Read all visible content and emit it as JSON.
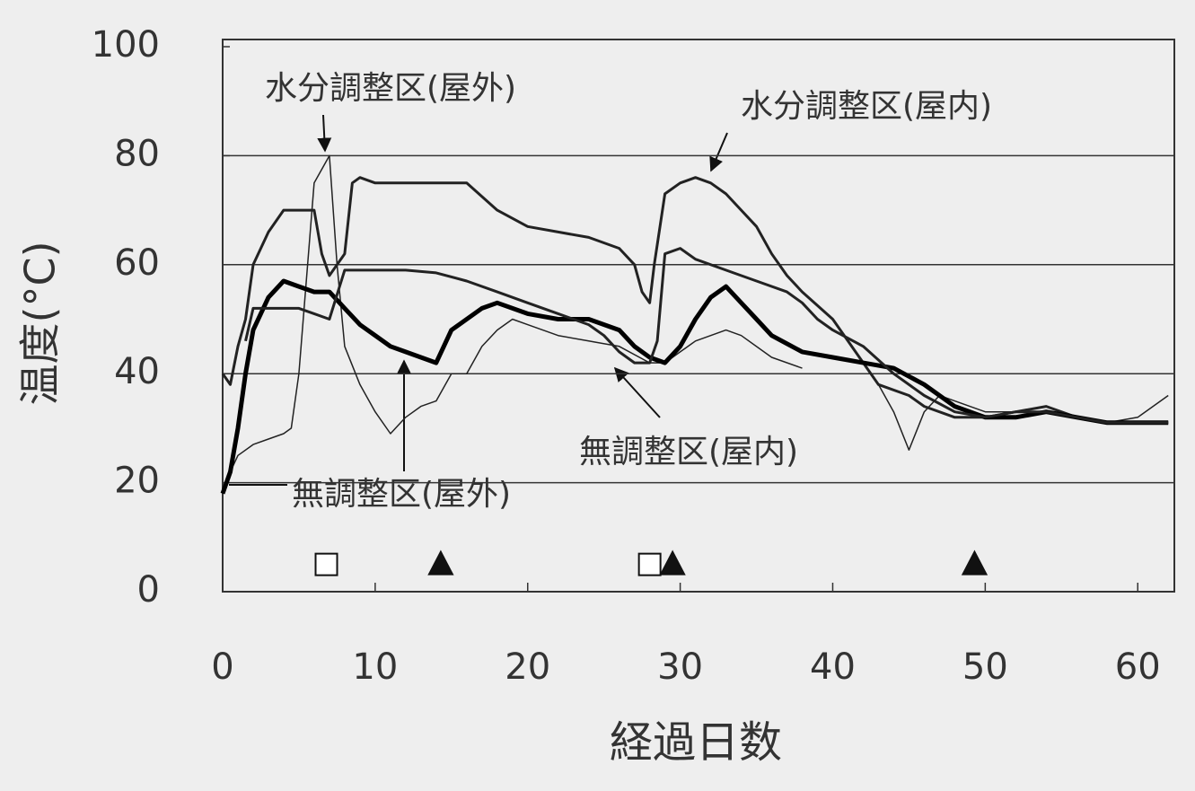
{
  "chart_data": {
    "type": "line",
    "xlabel": "経過日数",
    "ylabel": "温度(°C)",
    "xlim": [
      0,
      62.4
    ],
    "xticks": [
      0,
      10,
      20,
      30,
      40,
      50,
      60
    ],
    "ylim": [
      0,
      100
    ],
    "yticks": [
      0,
      20,
      40,
      60,
      80,
      100
    ],
    "grid": true,
    "series": [
      {
        "name": "水分調整区(屋外)",
        "color": "#222222",
        "width": 1.5,
        "x": [
          0.5,
          1,
          2,
          3,
          4,
          4.5,
          5,
          6,
          7,
          7.5,
          8,
          9,
          10,
          11,
          12,
          13,
          14,
          15,
          16,
          17,
          18,
          19,
          20,
          22,
          24,
          26,
          28,
          29,
          30,
          31,
          32,
          33,
          34,
          36,
          38,
          40,
          43,
          44,
          45,
          46,
          47,
          48,
          50,
          52,
          54,
          56,
          58,
          60,
          62
        ],
        "values": [
          22,
          25,
          27,
          28,
          29,
          30,
          40,
          75,
          80,
          60,
          45,
          38,
          33,
          29,
          32,
          34,
          35,
          40,
          40,
          45,
          48,
          50,
          49,
          47,
          46,
          45,
          42,
          42,
          44,
          46,
          47,
          48,
          47,
          43,
          41,
          null,
          38,
          33,
          26,
          33,
          36,
          35,
          33,
          33,
          34,
          32,
          31,
          32,
          36
        ]
      },
      {
        "name": "水分調整区(屋内)",
        "color": "#222222",
        "width": 3,
        "x": [
          0,
          0.5,
          1,
          1.5,
          2,
          3,
          4,
          5,
          6,
          6.5,
          7,
          7.5,
          8,
          8.5,
          9,
          10,
          12,
          14,
          16,
          18,
          20,
          22,
          24,
          26,
          27,
          27.5,
          28,
          28.3,
          29,
          30,
          31,
          32,
          33,
          34,
          35,
          36,
          37,
          38,
          40,
          42,
          43,
          45,
          46,
          48,
          50,
          52,
          54,
          56,
          58,
          60,
          62
        ],
        "values": [
          40,
          38,
          45,
          50,
          60,
          66,
          70,
          70,
          70,
          62,
          58,
          60,
          62,
          75,
          76,
          75,
          75,
          75,
          75,
          70,
          67,
          66,
          65,
          63,
          60,
          55,
          53,
          60,
          73,
          75,
          76,
          75,
          73,
          70,
          67,
          62,
          58,
          55,
          50,
          42,
          38,
          36,
          34,
          32,
          32,
          33,
          34,
          32,
          31,
          31,
          31
        ]
      },
      {
        "name": "無調整区(屋外)",
        "color": "#000000",
        "width": 5,
        "x": [
          0,
          0.5,
          1,
          1.5,
          2,
          3,
          4,
          5,
          6,
          7,
          8,
          9,
          10,
          11,
          12,
          13,
          14,
          15,
          16,
          17,
          18,
          20,
          22,
          24,
          26,
          27,
          28,
          29,
          30,
          31,
          32,
          33,
          34,
          35,
          36,
          38,
          40,
          42,
          44,
          46,
          48,
          50,
          52,
          54,
          56,
          58,
          60,
          62
        ],
        "values": [
          18,
          22,
          30,
          40,
          48,
          54,
          57,
          56,
          55,
          55,
          52,
          49,
          47,
          45,
          44,
          43,
          42,
          48,
          50,
          52,
          53,
          51,
          50,
          50,
          48,
          45,
          43,
          42,
          45,
          50,
          54,
          56,
          53,
          50,
          47,
          44,
          43,
          42,
          41,
          38,
          34,
          32,
          32,
          33,
          32,
          31,
          31,
          31
        ]
      },
      {
        "name": "無調整区(屋内)",
        "color": "#222222",
        "width": 3,
        "x": [
          1.5,
          2,
          4,
          5,
          6,
          7,
          8,
          10,
          12,
          14,
          16,
          18,
          20,
          22,
          24,
          25,
          26,
          27,
          28,
          28.5,
          29,
          30,
          31,
          33,
          35,
          37,
          38,
          39,
          40,
          42,
          44,
          46,
          48,
          50,
          52,
          54,
          56,
          58,
          60,
          62
        ],
        "values": [
          46,
          52,
          52,
          52,
          51,
          50,
          59,
          59,
          59,
          58.5,
          57,
          55,
          53,
          51,
          49,
          47,
          44,
          42,
          42,
          46,
          62,
          63,
          61,
          59,
          57,
          55,
          53,
          50,
          48,
          45,
          40,
          36,
          33,
          32,
          33,
          33,
          32,
          31,
          31,
          31
        ]
      }
    ],
    "markers": [
      {
        "shape": "square",
        "x": 6.8,
        "y": 5
      },
      {
        "shape": "triangle",
        "x": 14.3,
        "y": 5
      },
      {
        "shape": "square",
        "x": 28,
        "y": 5
      },
      {
        "shape": "triangle",
        "x": 29.5,
        "y": 5
      },
      {
        "shape": "triangle",
        "x": 49.3,
        "y": 5
      }
    ]
  }
}
